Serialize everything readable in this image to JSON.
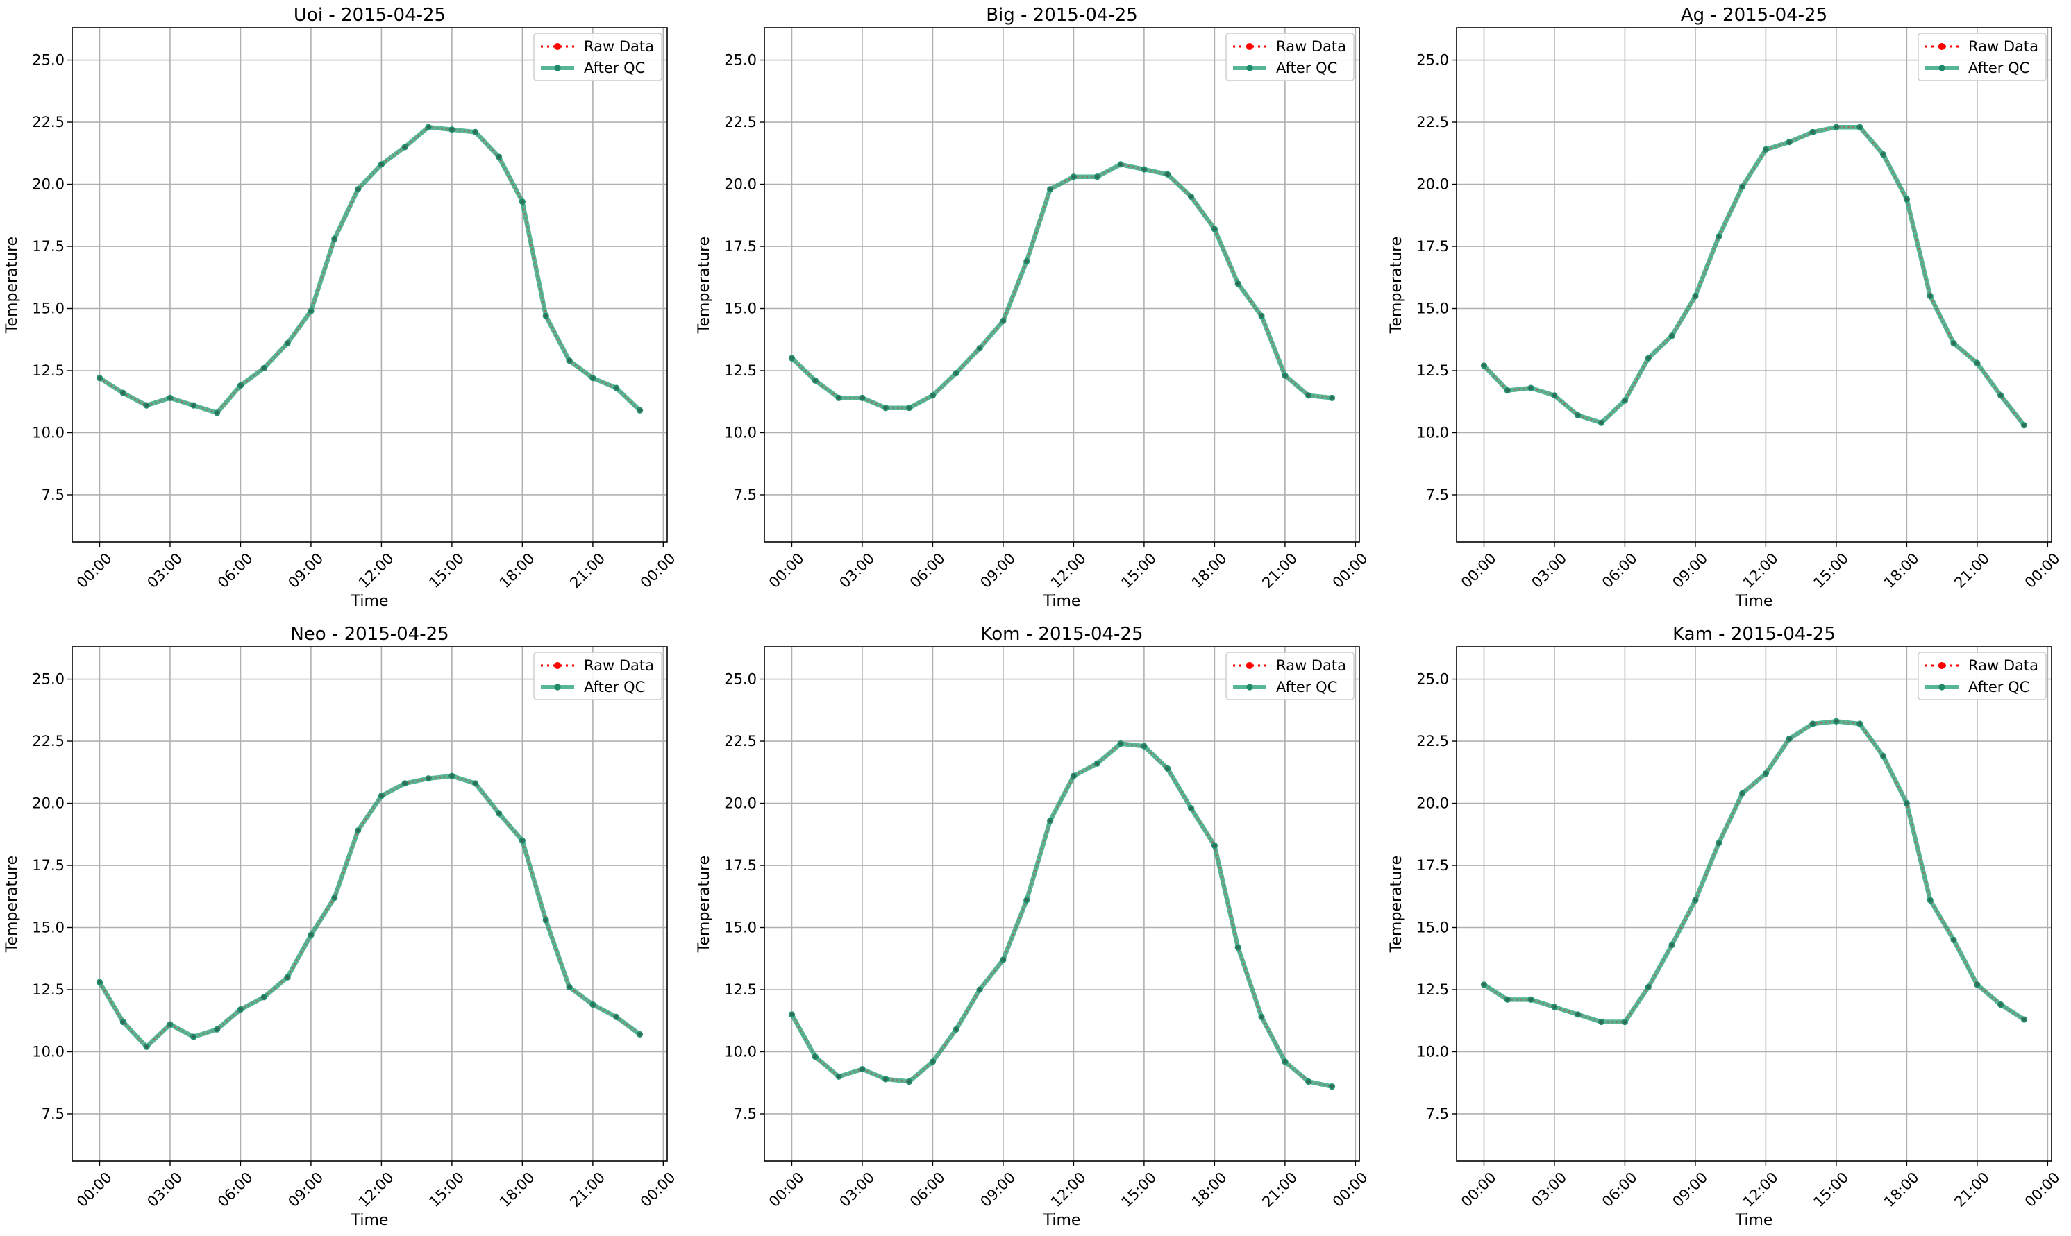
{
  "figure": {
    "background": "#ffffff"
  },
  "colors": {
    "raw": "#ff0000",
    "qc_line": "#2ca47c",
    "qc_marker": "#1f8a6a",
    "grid": "#b0b0b0",
    "axes": "#000000"
  },
  "chart_data": [
    {
      "type": "line",
      "title": "Uoi - 2015-04-25",
      "xlabel": "Time",
      "ylabel": "Temperature",
      "x_ticks": [
        "00:00",
        "03:00",
        "06:00",
        "09:00",
        "12:00",
        "15:00",
        "18:00",
        "21:00",
        "00:00"
      ],
      "y_ticks": [
        "7.5",
        "10.0",
        "12.5",
        "15.0",
        "17.5",
        "20.0",
        "22.5",
        "25.0"
      ],
      "xlim": [
        "2015-04-24 22:50",
        "2015-04-26 00:10"
      ],
      "ylim": [
        5.6,
        26.3
      ],
      "grid": true,
      "legend_position": "top-right",
      "x": [
        "00:00",
        "01:00",
        "02:00",
        "03:00",
        "04:00",
        "05:00",
        "06:00",
        "07:00",
        "08:00",
        "09:00",
        "10:00",
        "11:00",
        "12:00",
        "13:00",
        "14:00",
        "15:00",
        "16:00",
        "17:00",
        "18:00",
        "19:00",
        "20:00",
        "21:00",
        "22:00",
        "23:00"
      ],
      "series": [
        {
          "name": "Raw Data",
          "values": [
            12.2,
            11.6,
            11.1,
            11.4,
            11.1,
            10.8,
            11.9,
            12.6,
            13.6,
            14.9,
            17.8,
            19.8,
            20.8,
            21.5,
            22.3,
            22.2,
            22.1,
            21.1,
            19.3,
            14.7,
            12.9,
            12.2,
            11.8,
            10.9
          ]
        },
        {
          "name": "After QC",
          "values": [
            12.2,
            11.6,
            11.1,
            11.4,
            11.1,
            10.8,
            11.9,
            12.6,
            13.6,
            14.9,
            17.8,
            19.8,
            20.8,
            21.5,
            22.3,
            22.2,
            22.1,
            21.1,
            19.3,
            14.7,
            12.9,
            12.2,
            11.8,
            10.9
          ]
        }
      ]
    },
    {
      "type": "line",
      "title": "Big - 2015-04-25",
      "xlabel": "Time",
      "ylabel": "Temperature",
      "x_ticks": [
        "00:00",
        "03:00",
        "06:00",
        "09:00",
        "12:00",
        "15:00",
        "18:00",
        "21:00",
        "00:00"
      ],
      "y_ticks": [
        "7.5",
        "10.0",
        "12.5",
        "15.0",
        "17.5",
        "20.0",
        "22.5",
        "25.0"
      ],
      "xlim": [
        "2015-04-24 22:50",
        "2015-04-26 00:10"
      ],
      "ylim": [
        5.6,
        26.3
      ],
      "grid": true,
      "legend_position": "top-right",
      "x": [
        "00:00",
        "01:00",
        "02:00",
        "03:00",
        "04:00",
        "05:00",
        "06:00",
        "07:00",
        "08:00",
        "09:00",
        "10:00",
        "11:00",
        "12:00",
        "13:00",
        "14:00",
        "15:00",
        "16:00",
        "17:00",
        "18:00",
        "19:00",
        "20:00",
        "21:00",
        "22:00",
        "23:00"
      ],
      "series": [
        {
          "name": "Raw Data",
          "values": [
            13.0,
            12.1,
            11.4,
            11.4,
            11.0,
            11.0,
            11.5,
            12.4,
            13.4,
            14.5,
            16.9,
            19.8,
            20.3,
            20.3,
            20.8,
            20.6,
            20.4,
            19.5,
            18.2,
            16.0,
            14.7,
            12.3,
            11.5,
            11.4
          ]
        },
        {
          "name": "After QC",
          "values": [
            13.0,
            12.1,
            11.4,
            11.4,
            11.0,
            11.0,
            11.5,
            12.4,
            13.4,
            14.5,
            16.9,
            19.8,
            20.3,
            20.3,
            20.8,
            20.6,
            20.4,
            19.5,
            18.2,
            16.0,
            14.7,
            12.3,
            11.5,
            11.4
          ]
        }
      ]
    },
    {
      "type": "line",
      "title": "Ag - 2015-04-25",
      "xlabel": "Time",
      "ylabel": "Temperature",
      "x_ticks": [
        "00:00",
        "03:00",
        "06:00",
        "09:00",
        "12:00",
        "15:00",
        "18:00",
        "21:00",
        "00:00"
      ],
      "y_ticks": [
        "7.5",
        "10.0",
        "12.5",
        "15.0",
        "17.5",
        "20.0",
        "22.5",
        "25.0"
      ],
      "xlim": [
        "2015-04-24 22:50",
        "2015-04-26 00:10"
      ],
      "ylim": [
        5.6,
        26.3
      ],
      "grid": true,
      "legend_position": "top-right",
      "x": [
        "00:00",
        "01:00",
        "02:00",
        "03:00",
        "04:00",
        "05:00",
        "06:00",
        "07:00",
        "08:00",
        "09:00",
        "10:00",
        "11:00",
        "12:00",
        "13:00",
        "14:00",
        "15:00",
        "16:00",
        "17:00",
        "18:00",
        "19:00",
        "20:00",
        "21:00",
        "22:00",
        "23:00"
      ],
      "series": [
        {
          "name": "Raw Data",
          "values": [
            12.7,
            11.7,
            11.8,
            11.5,
            10.7,
            10.4,
            11.3,
            13.0,
            13.9,
            15.5,
            17.9,
            19.9,
            21.4,
            21.7,
            22.1,
            22.3,
            22.3,
            21.2,
            19.4,
            15.5,
            13.6,
            12.8,
            11.5,
            10.3
          ]
        },
        {
          "name": "After QC",
          "values": [
            12.7,
            11.7,
            11.8,
            11.5,
            10.7,
            10.4,
            11.3,
            13.0,
            13.9,
            15.5,
            17.9,
            19.9,
            21.4,
            21.7,
            22.1,
            22.3,
            22.3,
            21.2,
            19.4,
            15.5,
            13.6,
            12.8,
            11.5,
            10.3
          ]
        }
      ]
    },
    {
      "type": "line",
      "title": "Neo - 2015-04-25",
      "xlabel": "Time",
      "ylabel": "Temperature",
      "x_ticks": [
        "00:00",
        "03:00",
        "06:00",
        "09:00",
        "12:00",
        "15:00",
        "18:00",
        "21:00",
        "00:00"
      ],
      "y_ticks": [
        "7.5",
        "10.0",
        "12.5",
        "15.0",
        "17.5",
        "20.0",
        "22.5",
        "25.0"
      ],
      "xlim": [
        "2015-04-24 22:50",
        "2015-04-26 00:10"
      ],
      "ylim": [
        5.6,
        26.3
      ],
      "grid": true,
      "legend_position": "top-right",
      "x": [
        "00:00",
        "01:00",
        "02:00",
        "03:00",
        "04:00",
        "05:00",
        "06:00",
        "07:00",
        "08:00",
        "09:00",
        "10:00",
        "11:00",
        "12:00",
        "13:00",
        "14:00",
        "15:00",
        "16:00",
        "17:00",
        "18:00",
        "19:00",
        "20:00",
        "21:00",
        "22:00",
        "23:00"
      ],
      "series": [
        {
          "name": "Raw Data",
          "values": [
            12.8,
            11.2,
            10.2,
            11.1,
            10.6,
            10.9,
            11.7,
            12.2,
            13.0,
            14.7,
            16.2,
            18.9,
            20.3,
            20.8,
            21.0,
            21.1,
            20.8,
            19.6,
            18.5,
            15.3,
            12.6,
            11.9,
            11.4,
            10.7
          ]
        },
        {
          "name": "After QC",
          "values": [
            12.8,
            11.2,
            10.2,
            11.1,
            10.6,
            10.9,
            11.7,
            12.2,
            13.0,
            14.7,
            16.2,
            18.9,
            20.3,
            20.8,
            21.0,
            21.1,
            20.8,
            19.6,
            18.5,
            15.3,
            12.6,
            11.9,
            11.4,
            10.7
          ]
        }
      ]
    },
    {
      "type": "line",
      "title": "Kom - 2015-04-25",
      "xlabel": "Time",
      "ylabel": "Temperature",
      "x_ticks": [
        "00:00",
        "03:00",
        "06:00",
        "09:00",
        "12:00",
        "15:00",
        "18:00",
        "21:00",
        "00:00"
      ],
      "y_ticks": [
        "7.5",
        "10.0",
        "12.5",
        "15.0",
        "17.5",
        "20.0",
        "22.5",
        "25.0"
      ],
      "xlim": [
        "2015-04-24 22:50",
        "2015-04-26 00:10"
      ],
      "ylim": [
        5.6,
        26.3
      ],
      "grid": true,
      "legend_position": "top-right",
      "x": [
        "00:00",
        "01:00",
        "02:00",
        "03:00",
        "04:00",
        "05:00",
        "06:00",
        "07:00",
        "08:00",
        "09:00",
        "10:00",
        "11:00",
        "12:00",
        "13:00",
        "14:00",
        "15:00",
        "16:00",
        "17:00",
        "18:00",
        "19:00",
        "20:00",
        "21:00",
        "22:00",
        "23:00"
      ],
      "series": [
        {
          "name": "Raw Data",
          "values": [
            11.5,
            9.8,
            9.0,
            9.3,
            8.9,
            8.8,
            9.6,
            10.9,
            12.5,
            13.7,
            16.1,
            19.3,
            21.1,
            21.6,
            22.4,
            22.3,
            21.4,
            19.8,
            18.3,
            14.2,
            11.4,
            9.6,
            8.8,
            8.6
          ]
        },
        {
          "name": "After QC",
          "values": [
            11.5,
            9.8,
            9.0,
            9.3,
            8.9,
            8.8,
            9.6,
            10.9,
            12.5,
            13.7,
            16.1,
            19.3,
            21.1,
            21.6,
            22.4,
            22.3,
            21.4,
            19.8,
            18.3,
            14.2,
            11.4,
            9.6,
            8.8,
            8.6
          ]
        }
      ]
    },
    {
      "type": "line",
      "title": "Kam - 2015-04-25",
      "xlabel": "Time",
      "ylabel": "Temperature",
      "x_ticks": [
        "00:00",
        "03:00",
        "06:00",
        "09:00",
        "12:00",
        "15:00",
        "18:00",
        "21:00",
        "00:00"
      ],
      "y_ticks": [
        "7.5",
        "10.0",
        "12.5",
        "15.0",
        "17.5",
        "20.0",
        "22.5",
        "25.0"
      ],
      "xlim": [
        "2015-04-24 22:50",
        "2015-04-26 00:10"
      ],
      "ylim": [
        5.6,
        26.3
      ],
      "grid": true,
      "legend_position": "top-right",
      "x": [
        "00:00",
        "01:00",
        "02:00",
        "03:00",
        "04:00",
        "05:00",
        "06:00",
        "07:00",
        "08:00",
        "09:00",
        "10:00",
        "11:00",
        "12:00",
        "13:00",
        "14:00",
        "15:00",
        "16:00",
        "17:00",
        "18:00",
        "19:00",
        "20:00",
        "21:00",
        "22:00",
        "23:00"
      ],
      "series": [
        {
          "name": "Raw Data",
          "values": [
            12.7,
            12.1,
            12.1,
            11.8,
            11.5,
            11.2,
            11.2,
            12.6,
            14.3,
            16.1,
            18.4,
            20.4,
            21.2,
            22.6,
            23.2,
            23.3,
            23.2,
            21.9,
            20.0,
            16.1,
            14.5,
            12.7,
            11.9,
            11.3
          ]
        },
        {
          "name": "After QC",
          "values": [
            12.7,
            12.1,
            12.1,
            11.8,
            11.5,
            11.2,
            11.2,
            12.6,
            14.3,
            16.1,
            18.4,
            20.4,
            21.2,
            22.6,
            23.2,
            23.3,
            23.2,
            21.9,
            20.0,
            16.1,
            14.5,
            12.7,
            11.9,
            11.3
          ]
        }
      ]
    }
  ]
}
